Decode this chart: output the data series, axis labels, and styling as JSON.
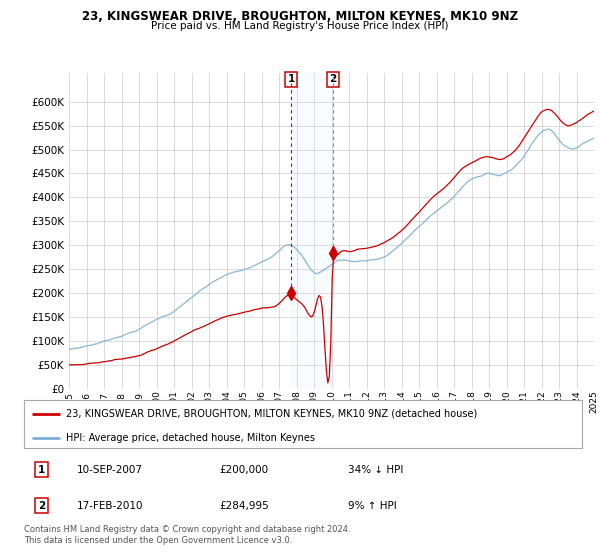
{
  "title": "23, KINGSWEAR DRIVE, BROUGHTON, MILTON KEYNES, MK10 9NZ",
  "subtitle": "Price paid vs. HM Land Registry's House Price Index (HPI)",
  "legend_line1": "23, KINGSWEAR DRIVE, BROUGHTON, MILTON KEYNES, MK10 9NZ (detached house)",
  "legend_line2": "HPI: Average price, detached house, Milton Keynes",
  "transaction1_date": "10-SEP-2007",
  "transaction1_price": "£200,000",
  "transaction1_hpi": "34% ↓ HPI",
  "transaction2_date": "17-FEB-2010",
  "transaction2_price": "£284,995",
  "transaction2_hpi": "9% ↑ HPI",
  "footer": "Contains HM Land Registry data © Crown copyright and database right 2024.\nThis data is licensed under the Open Government Licence v3.0.",
  "sale_color": "#cc0000",
  "hpi_color": "#7bafd4",
  "shade_color": "#ddeeff",
  "ylim": [
    0,
    660000
  ],
  "yticks": [
    0,
    50000,
    100000,
    150000,
    200000,
    250000,
    300000,
    350000,
    400000,
    450000,
    500000,
    550000,
    600000
  ],
  "background_color": "#ffffff",
  "grid_color": "#cccccc",
  "transaction1_x": 2007.7,
  "transaction1_y": 200000,
  "transaction2_x": 2010.1,
  "transaction2_y": 284995,
  "xmin": 1995,
  "xmax": 2025
}
